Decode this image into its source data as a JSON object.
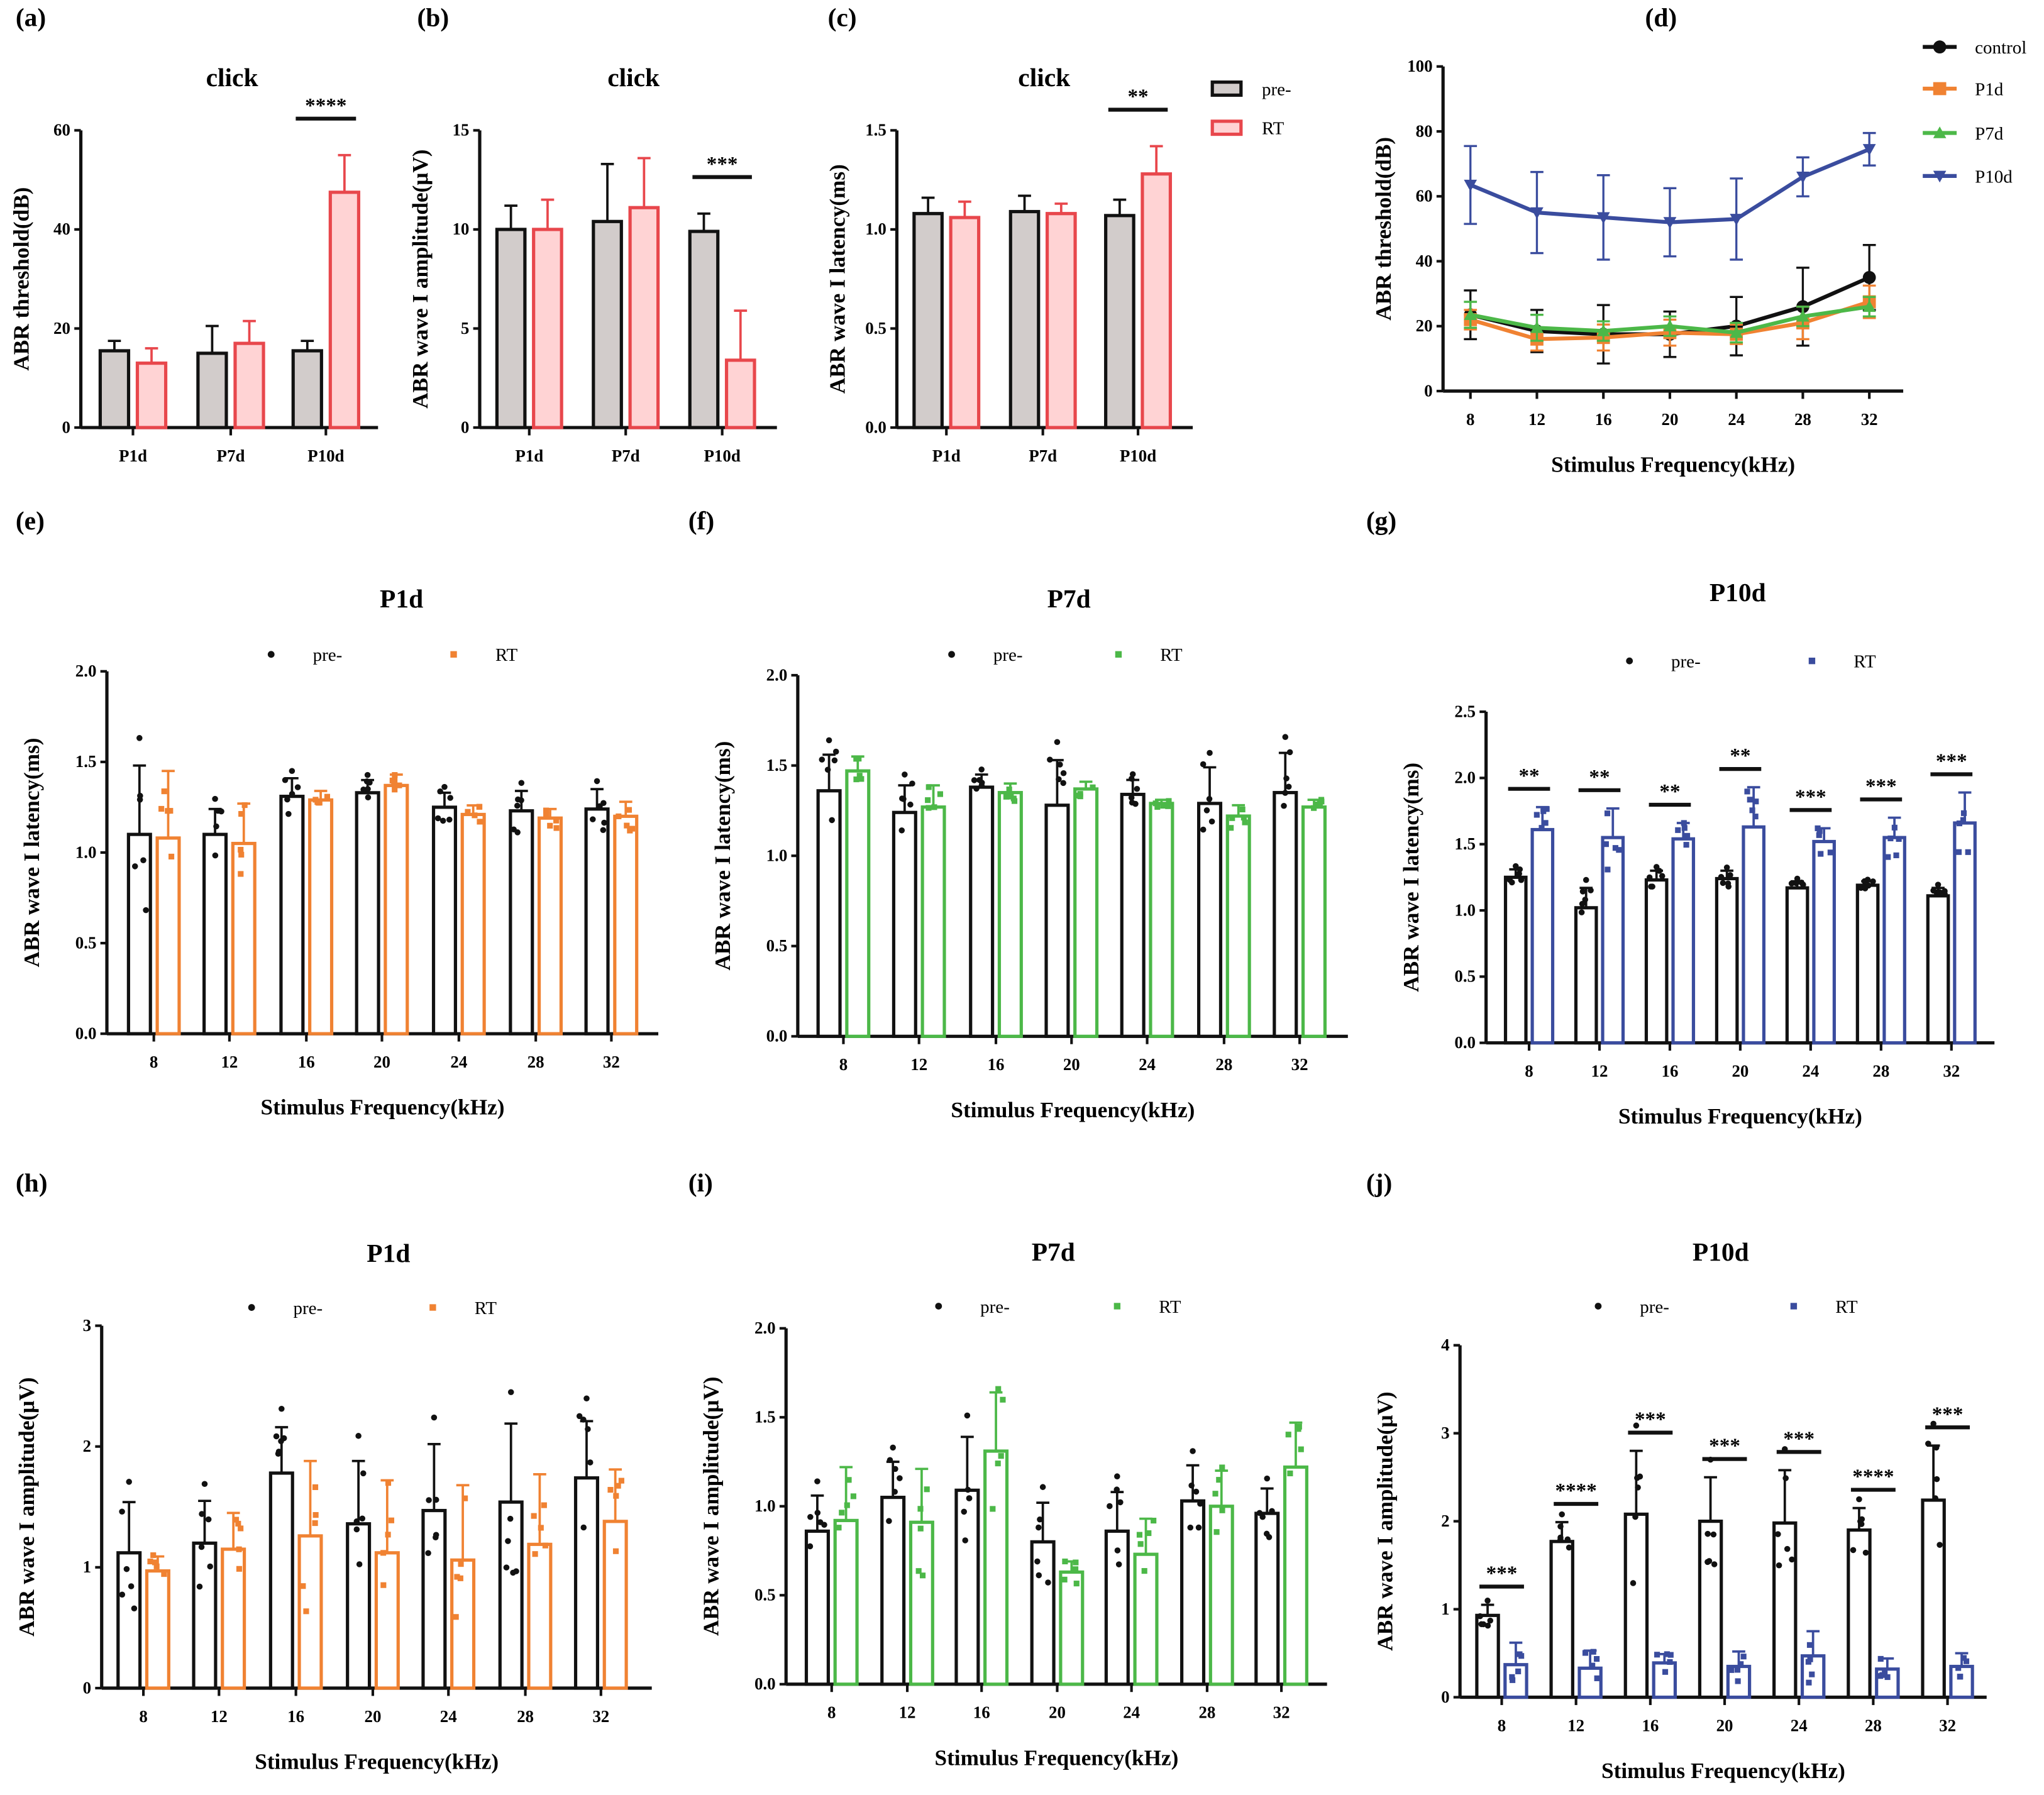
{
  "colors": {
    "pre_fill": "#d2cccb",
    "pre_stroke": "#111111",
    "rt_red": "#e8474c",
    "rt_red_fill": "#ffd3d4",
    "orange": "#f08232",
    "green": "#4cb848",
    "blue": "#3a4c9e",
    "black": "#111111"
  },
  "chart_data": [
    {
      "label": "(a)",
      "type": "bar",
      "title": "click",
      "xlabel": "",
      "ylabel": "ABR threshold(dB)",
      "categories": [
        "P1d",
        "P7d",
        "P10d"
      ],
      "ylim": [
        0,
        60
      ],
      "yticks": [
        "0",
        "20",
        "40",
        "60"
      ],
      "error_style": "mean+SD",
      "series": [
        {
          "name": "pre-",
          "values": [
            15.5,
            15,
            15.5
          ],
          "errors": [
            2,
            5.5,
            2
          ]
        },
        {
          "name": "RT",
          "values": [
            13,
            17,
            47.5
          ],
          "errors": [
            3,
            4.5,
            7.5
          ]
        }
      ],
      "significance": [
        "",
        "",
        "****"
      ]
    },
    {
      "label": "(b)",
      "type": "bar",
      "title": "click",
      "xlabel": "",
      "ylabel": "ABR wave I amplitude(μV)",
      "categories": [
        "P1d",
        "P7d",
        "P10d"
      ],
      "ylim": [
        0,
        15
      ],
      "yticks": [
        "0",
        "5",
        "10",
        "15"
      ],
      "error_style": "mean+SD",
      "series": [
        {
          "name": "pre-",
          "values": [
            10,
            10.4,
            9.9
          ],
          "errors": [
            1.2,
            2.9,
            0.9
          ]
        },
        {
          "name": "RT",
          "values": [
            10,
            11.1,
            3.4
          ],
          "errors": [
            1.5,
            2.5,
            2.5
          ]
        }
      ],
      "significance": [
        "",
        "",
        "***"
      ]
    },
    {
      "label": "(c)",
      "type": "bar",
      "title": "click",
      "xlabel": "",
      "ylabel": "ABR wave I latency(ms)",
      "categories": [
        "P1d",
        "P7d",
        "P10d"
      ],
      "ylim": [
        0,
        1.5
      ],
      "yticks": [
        "0.0",
        "0.5",
        "1.0",
        "1.5"
      ],
      "error_style": "mean+SD",
      "series": [
        {
          "name": "pre-",
          "values": [
            1.08,
            1.09,
            1.07
          ],
          "errors": [
            0.08,
            0.08,
            0.08
          ]
        },
        {
          "name": "RT",
          "values": [
            1.06,
            1.08,
            1.28
          ],
          "errors": [
            0.08,
            0.05,
            0.14
          ]
        }
      ],
      "significance": [
        "",
        "",
        "**"
      ],
      "legend": [
        "pre-",
        "RT"
      ],
      "legend_position": "right"
    },
    {
      "label": "(d)",
      "type": "line",
      "title": "",
      "xlabel": "Stimulus Frequency(kHz)",
      "ylabel": "ABR threshold(dB)",
      "categories": [
        "8",
        "12",
        "16",
        "20",
        "24",
        "28",
        "32"
      ],
      "ylim": [
        0,
        100
      ],
      "yticks": [
        "0",
        "20",
        "40",
        "60",
        "80",
        "100"
      ],
      "error_style": "mean±SD",
      "series": [
        {
          "name": "control",
          "marker": "circle",
          "values": [
            23.5,
            18.5,
            17.5,
            17.5,
            20,
            26,
            35
          ],
          "errors": [
            7.5,
            6.5,
            9,
            7,
            9,
            12,
            10
          ]
        },
        {
          "name": "P1d",
          "marker": "square",
          "values": [
            22,
            16,
            16.5,
            18,
            17.5,
            21,
            27.5
          ],
          "errors": [
            3,
            3.5,
            4,
            4,
            3,
            5,
            5
          ]
        },
        {
          "name": "P7d",
          "marker": "triangle-up",
          "values": [
            23.5,
            19.5,
            18.5,
            20,
            18,
            23,
            26
          ],
          "errors": [
            4,
            4,
            3,
            3,
            3,
            3,
            3
          ]
        },
        {
          "name": "P10d",
          "marker": "triangle-down",
          "values": [
            63.5,
            55,
            53.5,
            52,
            53,
            66,
            74.5
          ],
          "errors": [
            12,
            12.5,
            13,
            10.5,
            12.5,
            6,
            5
          ]
        }
      ],
      "legend": [
        "control",
        "P1d",
        "P7d",
        "P10d"
      ],
      "legend_position": "top-right"
    },
    {
      "label": "(e)",
      "type": "bar",
      "title": "P1d",
      "xlabel": "Stimulus Frequency(kHz)",
      "ylabel": "ABR wave I latency(ms)",
      "categories": [
        "8",
        "12",
        "16",
        "20",
        "24",
        "28",
        "32"
      ],
      "ylim": [
        0,
        2.0
      ],
      "yticks": [
        "0.0",
        "0.5",
        "1.0",
        "1.5",
        "2.0"
      ],
      "error_style": "mean±SD",
      "series": [
        {
          "name": "pre-",
          "values": [
            1.1,
            1.1,
            1.31,
            1.33,
            1.25,
            1.23,
            1.24
          ],
          "errors": [
            0.38,
            0.14,
            0.1,
            0.07,
            0.08,
            0.11,
            0.11
          ]
        },
        {
          "name": "RT",
          "values": [
            1.08,
            1.05,
            1.29,
            1.37,
            1.21,
            1.19,
            1.2
          ],
          "errors": [
            0.37,
            0.22,
            0.05,
            0.06,
            0.05,
            0.05,
            0.08
          ]
        }
      ],
      "significance": [],
      "legend": [
        "pre-",
        "RT"
      ],
      "legend_position": "top"
    },
    {
      "label": "(f)",
      "type": "bar",
      "title": "P7d",
      "xlabel": "Stimulus Frequency(kHz)",
      "ylabel": "ABR wave I latency(ms)",
      "categories": [
        "8",
        "12",
        "16",
        "20",
        "24",
        "28",
        "32"
      ],
      "ylim": [
        0,
        2.0
      ],
      "yticks": [
        "0.0",
        "0.5",
        "1.0",
        "1.5",
        "2.0"
      ],
      "error_style": "mean±SD",
      "series": [
        {
          "name": "pre-",
          "values": [
            1.36,
            1.24,
            1.38,
            1.28,
            1.34,
            1.29,
            1.35
          ],
          "errors": [
            0.2,
            0.15,
            0.07,
            0.25,
            0.08,
            0.2,
            0.22
          ]
        },
        {
          "name": "RT",
          "values": [
            1.47,
            1.27,
            1.35,
            1.37,
            1.29,
            1.22,
            1.27
          ],
          "errors": [
            0.08,
            0.12,
            0.05,
            0.04,
            0.02,
            0.06,
            0.04
          ]
        }
      ],
      "significance": [],
      "legend": [
        "pre-",
        "RT"
      ],
      "legend_position": "top"
    },
    {
      "label": "(g)",
      "type": "bar",
      "title": "P10d",
      "xlabel": "Stimulus Frequency(kHz)",
      "ylabel": "ABR wave I latency(ms)",
      "categories": [
        "8",
        "12",
        "16",
        "20",
        "24",
        "28",
        "32"
      ],
      "ylim": [
        0,
        2.5
      ],
      "yticks": [
        "0.0",
        "0.5",
        "1.0",
        "1.5",
        "2.0",
        "2.5"
      ],
      "error_style": "mean±SD",
      "series": [
        {
          "name": "pre-",
          "values": [
            1.25,
            1.02,
            1.23,
            1.24,
            1.17,
            1.19,
            1.11
          ],
          "errors": [
            0.06,
            0.15,
            0.07,
            0.06,
            0.05,
            0.03,
            0.06
          ]
        },
        {
          "name": "RT",
          "values": [
            1.61,
            1.55,
            1.54,
            1.63,
            1.52,
            1.55,
            1.66
          ],
          "errors": [
            0.17,
            0.22,
            0.12,
            0.3,
            0.1,
            0.15,
            0.23
          ]
        }
      ],
      "significance": [
        "**",
        "**",
        "**",
        "**",
        "***",
        "***",
        "***"
      ],
      "legend": [
        "pre-",
        "RT"
      ],
      "legend_position": "top"
    },
    {
      "label": "(h)",
      "type": "bar",
      "title": "P1d",
      "xlabel": "Stimulus Frequency(kHz)",
      "ylabel": "ABR wave I amplitude(μV)",
      "categories": [
        "8",
        "12",
        "16",
        "20",
        "24",
        "28",
        "32"
      ],
      "ylim": [
        0,
        3
      ],
      "yticks": [
        "0",
        "1",
        "2",
        "3"
      ],
      "error_style": "mean±SD",
      "series": [
        {
          "name": "pre-",
          "values": [
            1.12,
            1.2,
            1.78,
            1.36,
            1.47,
            1.54,
            1.74
          ],
          "errors": [
            0.42,
            0.35,
            0.38,
            0.52,
            0.55,
            0.65,
            0.47
          ]
        },
        {
          "name": "RT",
          "values": [
            0.97,
            1.15,
            1.26,
            1.12,
            1.06,
            1.19,
            1.38
          ],
          "errors": [
            0.12,
            0.3,
            0.62,
            0.6,
            0.62,
            0.58,
            0.43
          ]
        }
      ],
      "significance": [],
      "legend": [
        "pre-",
        "RT"
      ],
      "legend_position": "top"
    },
    {
      "label": "(i)",
      "type": "bar",
      "title": "P7d",
      "xlabel": "Stimulus Frequency(kHz)",
      "ylabel": "ABR wave I amplitude(μV)",
      "categories": [
        "8",
        "12",
        "16",
        "20",
        "24",
        "28",
        "32"
      ],
      "ylim": [
        0,
        2.0
      ],
      "yticks": [
        "0.0",
        "0.5",
        "1.0",
        "1.5",
        "2.0"
      ],
      "error_style": "mean±SD",
      "series": [
        {
          "name": "pre-",
          "values": [
            0.86,
            1.05,
            1.09,
            0.8,
            0.86,
            1.03,
            0.96
          ],
          "errors": [
            0.2,
            0.2,
            0.3,
            0.22,
            0.22,
            0.2,
            0.14
          ]
        },
        {
          "name": "RT",
          "values": [
            0.92,
            0.91,
            1.31,
            0.63,
            0.73,
            1.0,
            1.22
          ],
          "errors": [
            0.3,
            0.3,
            0.33,
            0.06,
            0.2,
            0.2,
            0.25
          ]
        }
      ],
      "significance": [],
      "legend": [
        "pre-",
        "RT"
      ],
      "legend_position": "top"
    },
    {
      "label": "(j)",
      "type": "bar",
      "title": "P10d",
      "xlabel": "Stimulus Frequency(kHz)",
      "ylabel": "ABR wave I amplitude(μV)",
      "categories": [
        "8",
        "12",
        "16",
        "20",
        "24",
        "28",
        "32"
      ],
      "ylim": [
        0,
        4
      ],
      "yticks": [
        "0",
        "1",
        "2",
        "3",
        "4"
      ],
      "error_style": "mean±SD",
      "series": [
        {
          "name": "pre-",
          "values": [
            0.93,
            1.77,
            2.08,
            2.0,
            1.98,
            1.9,
            2.24
          ],
          "errors": [
            0.12,
            0.22,
            0.72,
            0.5,
            0.6,
            0.25,
            0.62
          ]
        },
        {
          "name": "RT",
          "values": [
            0.37,
            0.33,
            0.39,
            0.35,
            0.47,
            0.32,
            0.35
          ],
          "errors": [
            0.25,
            0.2,
            0.1,
            0.17,
            0.28,
            0.12,
            0.15
          ]
        }
      ],
      "significance": [
        "***",
        "****",
        "***",
        "***",
        "***",
        "****",
        "***"
      ],
      "legend": [
        "pre-",
        "RT"
      ],
      "legend_position": "top"
    }
  ]
}
